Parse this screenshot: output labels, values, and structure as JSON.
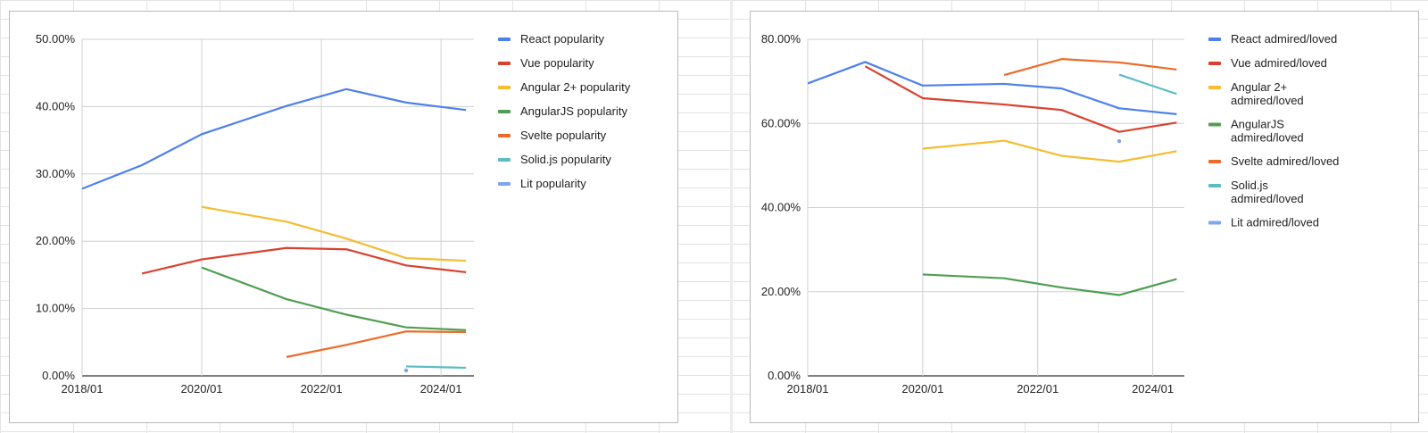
{
  "chart_data": [
    {
      "type": "line",
      "x": [
        "2018/01",
        "2019/01",
        "2020/01",
        "2021/06",
        "2022/06",
        "2023/06",
        "2024/06"
      ],
      "xticks": [
        "2018/01",
        "2020/01",
        "2022/01",
        "2024/01"
      ],
      "yticks": [
        "0.00%",
        "10.00%",
        "20.00%",
        "30.00%",
        "40.00%",
        "50.00%"
      ],
      "ylim": [
        0,
        50
      ],
      "grid": true,
      "legend_position": "right",
      "series": [
        {
          "name": "React popularity",
          "color": "#4e80e8",
          "values": [
            27.8,
            31.3,
            35.9,
            40.1,
            42.6,
            40.6,
            39.5
          ]
        },
        {
          "name": "Vue popularity",
          "color": "#d9412f",
          "values": [
            null,
            15.2,
            17.3,
            19.0,
            18.8,
            16.4,
            15.4
          ]
        },
        {
          "name": "Angular 2+ popularity",
          "color": "#f4bd32",
          "values": [
            null,
            null,
            25.1,
            22.9,
            20.4,
            17.5,
            17.1
          ]
        },
        {
          "name": "AngularJS popularity",
          "color": "#4f9f53",
          "values": [
            null,
            null,
            16.1,
            11.4,
            9.1,
            7.2,
            6.8
          ]
        },
        {
          "name": "Svelte popularity",
          "color": "#ec6b2a",
          "values": [
            null,
            null,
            null,
            2.8,
            4.6,
            6.6,
            6.5
          ]
        },
        {
          "name": "Solid.js popularity",
          "color": "#5bbcc3",
          "values": [
            null,
            null,
            null,
            null,
            null,
            1.4,
            1.2
          ]
        },
        {
          "name": "Lit popularity",
          "color": "#7ea5ee",
          "values": [
            null,
            null,
            null,
            null,
            null,
            0.8,
            null
          ]
        }
      ]
    },
    {
      "type": "line",
      "x": [
        "2018/01",
        "2019/01",
        "2020/01",
        "2021/06",
        "2022/06",
        "2023/06",
        "2024/06"
      ],
      "xticks": [
        "2018/01",
        "2020/01",
        "2022/01",
        "2024/01"
      ],
      "yticks": [
        "0.00%",
        "20.00%",
        "40.00%",
        "60.00%",
        "80.00%"
      ],
      "ylim": [
        0,
        80
      ],
      "grid": true,
      "legend_position": "right",
      "series": [
        {
          "name": "React admired/loved",
          "color": "#4e80e8",
          "values": [
            69.5,
            74.6,
            69.0,
            69.4,
            68.3,
            63.6,
            62.2
          ]
        },
        {
          "name": "Vue admired/loved",
          "color": "#d9412f",
          "values": [
            null,
            73.6,
            66.0,
            64.5,
            63.2,
            58.0,
            60.2
          ]
        },
        {
          "name": "Angular 2+ admired/loved",
          "color": "#f4bd32",
          "values": [
            null,
            null,
            54.0,
            55.9,
            52.3,
            50.9,
            53.4
          ]
        },
        {
          "name": "AngularJS admired/loved",
          "color": "#4f9f53",
          "values": [
            null,
            null,
            24.1,
            23.2,
            21.0,
            19.2,
            23.0
          ]
        },
        {
          "name": "Svelte admired/loved",
          "color": "#ec6b2a",
          "values": [
            null,
            null,
            null,
            71.5,
            75.3,
            74.5,
            72.8
          ]
        },
        {
          "name": "Solid.js admired/loved",
          "color": "#5bbcc3",
          "values": [
            null,
            null,
            null,
            null,
            null,
            71.6,
            67.0
          ]
        },
        {
          "name": "Lit admired/loved",
          "color": "#7ea5ee",
          "values": [
            null,
            null,
            null,
            null,
            null,
            55.8,
            null
          ]
        }
      ]
    }
  ]
}
